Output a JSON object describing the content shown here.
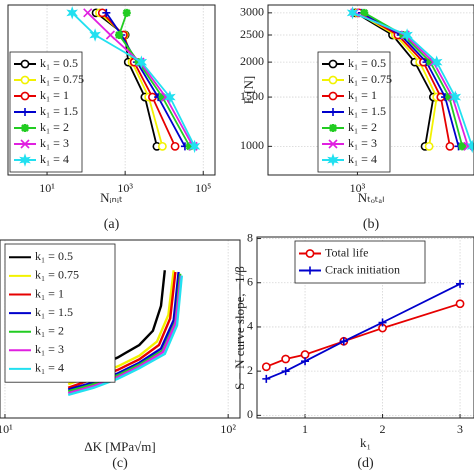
{
  "chart_data": [
    {
      "type": "line",
      "xlabel": "Nᵢₙᵢₜ",
      "panel_label": "(a)",
      "xscale": "log",
      "yscale": "log",
      "grid": true,
      "legend": "lower left",
      "xlim": [
        1,
        200000
      ],
      "ylim": [
        790,
        3200
      ],
      "xticks": [
        {
          "value": 10,
          "label": "10¹"
        },
        {
          "value": 1000,
          "label": "10³"
        },
        {
          "value": 100000,
          "label": "10⁵"
        }
      ],
      "series": [
        {
          "name": "k₁ = 0.5",
          "color": "#000000",
          "marker": "o",
          "x": [
            6500,
            3200,
            1200,
            1000,
            180
          ],
          "values": [
            1000,
            1500,
            2000,
            2500,
            3000
          ]
        },
        {
          "name": "k₁ = 0.75",
          "color": "#f2f200",
          "marker": "o",
          "x": [
            9000,
            4000,
            1500,
            950,
            220
          ],
          "values": [
            1000,
            1500,
            2000,
            2500,
            3000
          ]
        },
        {
          "name": "k₁ = 1",
          "color": "#e60000",
          "marker": "o",
          "x": [
            19000,
            5000,
            1700,
            900,
            260
          ],
          "values": [
            1000,
            1500,
            2000,
            2500,
            3000
          ]
        },
        {
          "name": "k₁ = 1.5",
          "color": "#0000cc",
          "marker": "+",
          "x": [
            34000,
            7000,
            2000,
            800,
            330
          ],
          "values": [
            1000,
            1500,
            2000,
            2500,
            3000
          ]
        },
        {
          "name": "k₁ = 2",
          "color": "#22cc22",
          "marker": "*",
          "x": [
            45000,
            9000,
            2200,
            700,
            1100
          ],
          "values": [
            1000,
            1500,
            2000,
            2500,
            3000
          ]
        },
        {
          "name": "k₁ = 3",
          "color": "#e020e0",
          "marker": "x",
          "x": [
            55000,
            11000,
            2400,
            420,
            110
          ],
          "values": [
            1000,
            1500,
            2000,
            2500,
            3000
          ]
        },
        {
          "name": "k₁ = 4",
          "color": "#22e0f0",
          "marker": "h",
          "x": [
            60000,
            14000,
            2600,
            170,
            44
          ],
          "values": [
            1000,
            1500,
            2000,
            2500,
            3000
          ]
        }
      ]
    },
    {
      "type": "line",
      "xlabel": "Nₜₒₜₐₗ",
      "ylabel": "F [N]",
      "panel_label": "(b)",
      "xscale": "log",
      "yscale": "log",
      "grid": true,
      "legend": "lower left",
      "xlim": [
        5,
        1000000
      ],
      "ylim": [
        790,
        3200
      ],
      "xticks": [
        {
          "value": 1000,
          "label": "10³"
        }
      ],
      "yticks": [
        1000,
        1500,
        2000,
        2500,
        3000
      ],
      "series": [
        {
          "name": "k₁ = 0.5",
          "color": "#000000",
          "marker": "o",
          "x": [
            55000,
            90000,
            30000,
            8000,
            900
          ],
          "values": [
            1000,
            1500,
            2000,
            2500,
            3000
          ]
        },
        {
          "name": "k₁ = 0.75",
          "color": "#f2f200",
          "marker": "o",
          "x": [
            70000,
            110000,
            40000,
            9500,
            1000
          ],
          "values": [
            1000,
            1500,
            2000,
            2500,
            3000
          ]
        },
        {
          "name": "k₁ = 1",
          "color": "#e60000",
          "marker": "o",
          "x": [
            240000,
            140000,
            50000,
            11000,
            1100
          ],
          "values": [
            1000,
            1500,
            2000,
            2500,
            3000
          ]
        },
        {
          "name": "k₁ = 1.5",
          "color": "#0000cc",
          "marker": "+",
          "x": [
            400000,
            180000,
            60000,
            13000,
            1300
          ],
          "values": [
            1000,
            1500,
            2000,
            2500,
            3000
          ]
        },
        {
          "name": "k₁ = 2",
          "color": "#22cc22",
          "marker": "*",
          "x": [
            500000,
            230000,
            75000,
            15000,
            1500
          ],
          "values": [
            1000,
            1500,
            2000,
            2500,
            3000
          ]
        },
        {
          "name": "k₁ = 3",
          "color": "#e020e0",
          "marker": "x",
          "x": [
            700000,
            280000,
            90000,
            17000,
            850
          ],
          "values": [
            1000,
            1500,
            2000,
            2500,
            3000
          ]
        },
        {
          "name": "k₁ = 4",
          "color": "#22e0f0",
          "marker": "h",
          "x": [
            900000,
            330000,
            110000,
            19000,
            750
          ],
          "values": [
            1000,
            1500,
            2000,
            2500,
            3000
          ]
        }
      ]
    },
    {
      "type": "line",
      "xlabel": "ΔK [MPa√m]",
      "panel_label": "(c)",
      "xscale": "log",
      "grid": true,
      "legend": "upper left",
      "xlim": [
        9.5,
        113
      ],
      "ylim": [
        0,
        100
      ],
      "xticks": [
        {
          "value": 10,
          "label": "10¹"
        },
        {
          "value": 100,
          "label": "10²"
        }
      ],
      "series": [
        {
          "name": "k₁ = 0.5",
          "color": "#000000",
          "x": [
            19.2,
            25,
            32,
            40,
            46,
            50,
            52
          ],
          "values": [
            22,
            28,
            34,
            41,
            49,
            63,
            83
          ]
        },
        {
          "name": "k₁ = 0.75",
          "color": "#f2f200",
          "x": [
            19.2,
            25,
            32,
            40,
            48,
            54,
            57
          ],
          "values": [
            19,
            24,
            29,
            35,
            43,
            58,
            83
          ]
        },
        {
          "name": "k₁ = 1",
          "color": "#e60000",
          "x": [
            19.2,
            25,
            32,
            40,
            49,
            55,
            58
          ],
          "values": [
            17,
            22,
            27,
            33,
            41,
            56,
            82
          ]
        },
        {
          "name": "k₁ = 1.5",
          "color": "#0000cc",
          "x": [
            19.2,
            25,
            32,
            40,
            50,
            57,
            60
          ],
          "values": [
            16,
            20,
            25,
            31,
            39,
            55,
            82
          ]
        },
        {
          "name": "k₁ = 2",
          "color": "#22cc22",
          "x": [
            19.2,
            25,
            32,
            40,
            51,
            58,
            61
          ],
          "values": [
            15,
            19,
            24,
            30,
            38,
            54,
            81
          ]
        },
        {
          "name": "k₁ = 3",
          "color": "#e020e0",
          "x": [
            19.2,
            25,
            32,
            40,
            51,
            58,
            61.5
          ],
          "values": [
            14,
            18,
            23,
            29,
            37,
            53,
            80
          ]
        },
        {
          "name": "k₁ = 4",
          "color": "#22e0f0",
          "x": [
            19.2,
            25,
            32,
            40,
            52,
            59,
            62
          ],
          "values": [
            13,
            17,
            22,
            28,
            36,
            52,
            80
          ]
        }
      ]
    },
    {
      "type": "line",
      "xlabel": "k₁",
      "ylabel": "S − N curve slope, −1/β",
      "panel_label": "(d)",
      "grid": true,
      "legend": "upper left",
      "xlim": [
        0.38,
        3.18
      ],
      "ylim": [
        -0.12,
        8.07
      ],
      "xticks": [
        1,
        2,
        3
      ],
      "yticks": [
        0,
        2,
        4,
        6,
        8
      ],
      "series": [
        {
          "name": "Total life",
          "color": "#e60000",
          "marker": "o",
          "x": [
            0.5,
            0.75,
            1,
            1.5,
            2,
            3
          ],
          "values": [
            2.2,
            2.55,
            2.75,
            3.35,
            3.95,
            5.05
          ]
        },
        {
          "name": "Crack initiation",
          "color": "#0000cc",
          "marker": "+",
          "x": [
            0.5,
            0.75,
            1,
            1.5,
            2,
            3
          ],
          "values": [
            1.65,
            2.0,
            2.45,
            3.35,
            4.2,
            5.95
          ]
        }
      ]
    }
  ]
}
